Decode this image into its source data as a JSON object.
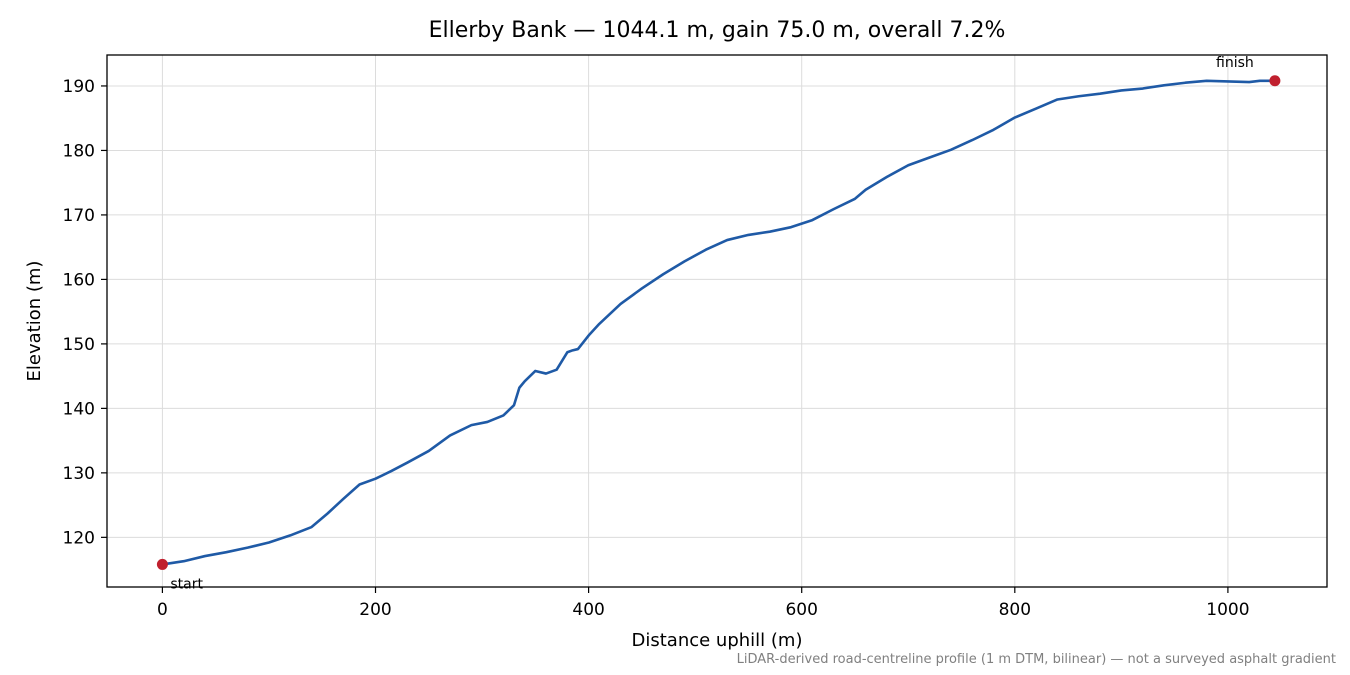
{
  "chart_data": {
    "type": "line",
    "title": "Ellerby Bank — 1044.1 m, gain 75.0 m, overall 7.2%",
    "xlabel": "Distance uphill (m)",
    "ylabel": "Elevation (m)",
    "xlim": [
      -52,
      1093
    ],
    "ylim": [
      112.3,
      194.8
    ],
    "xticks": [
      0,
      200,
      400,
      600,
      800,
      1000
    ],
    "yticks": [
      120,
      130,
      140,
      150,
      160,
      170,
      180,
      190
    ],
    "grid": true,
    "line_color": "#1f5aa6",
    "marker_color": "#c0202e",
    "series": [
      {
        "x": [
          0,
          20,
          40,
          60,
          80,
          100,
          120,
          140,
          155,
          170,
          185,
          200,
          215,
          230,
          250,
          270,
          290,
          305,
          320,
          330,
          335,
          340,
          350,
          360,
          370,
          380,
          385,
          390,
          400,
          410,
          430,
          450,
          470,
          490,
          510,
          530,
          550,
          570,
          590,
          610,
          630,
          650,
          660,
          680,
          700,
          720,
          740,
          760,
          780,
          800,
          820,
          840,
          860,
          880,
          900,
          920,
          940,
          960,
          980,
          1000,
          1020,
          1030,
          1044.1
        ],
        "y": [
          115.8,
          116.3,
          117.1,
          117.7,
          118.4,
          119.2,
          120.3,
          121.6,
          123.7,
          126.0,
          128.2,
          129.1,
          130.3,
          131.6,
          133.4,
          135.8,
          137.4,
          137.9,
          138.9,
          140.5,
          143.2,
          144.2,
          145.8,
          145.4,
          146.0,
          148.7,
          149.0,
          149.2,
          151.3,
          153.1,
          156.2,
          158.6,
          160.8,
          162.8,
          164.6,
          166.1,
          166.9,
          167.4,
          168.1,
          169.2,
          170.9,
          172.5,
          173.9,
          175.9,
          177.7,
          178.9,
          180.1,
          181.6,
          183.2,
          185.1,
          186.5,
          187.9,
          188.4,
          188.8,
          189.3,
          189.6,
          190.1,
          190.5,
          190.8,
          190.7,
          190.6,
          190.8,
          190.8
        ]
      }
    ],
    "annotations": [
      {
        "text": "start",
        "x": 0,
        "y": 115.8
      },
      {
        "text": "finish",
        "x": 1044.1,
        "y": 190.8
      }
    ],
    "footnote": "LiDAR-derived road-centreline profile (1 m DTM, bilinear) — not a surveyed asphalt gradient"
  }
}
